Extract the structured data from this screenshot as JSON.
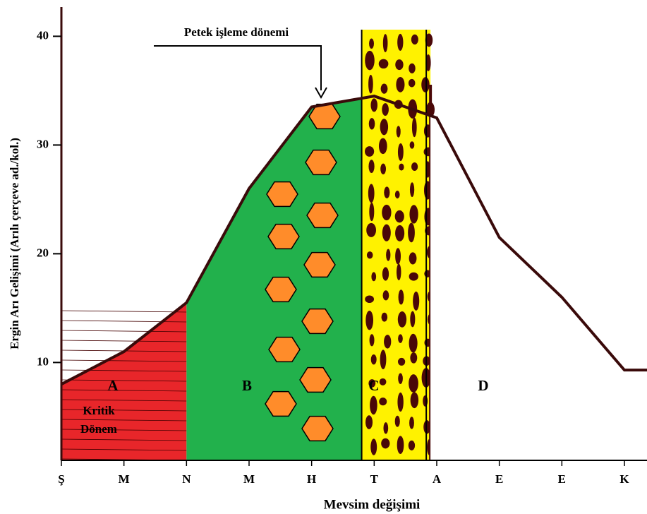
{
  "chart_data": {
    "type": "area",
    "annotation": "Petek işleme dönemi",
    "xlabel": "Mevsim değişimi",
    "ylabel": "Ergin Arı Gelişimi (Arılı çerçeve ad./kol.)",
    "categories": [
      "Ş",
      "M",
      "N",
      "M",
      "H",
      "T",
      "A",
      "E",
      "E",
      "K"
    ],
    "values": [
      8,
      11,
      15.5,
      26,
      33.5,
      34.5,
      32.5,
      21.5,
      16,
      9.3
    ],
    "color": "#3a0a0a",
    "ylim": [
      1,
      41
    ],
    "yticks": [
      10,
      20,
      30,
      40
    ],
    "regions": [
      {
        "label": "A",
        "note": "Kritik Dönem",
        "color": "#e8262a"
      },
      {
        "label": "B",
        "color": "#22b14c"
      },
      {
        "label": "C",
        "color": "#fff200"
      },
      {
        "label": "D",
        "color": "#ffffff"
      }
    ]
  }
}
